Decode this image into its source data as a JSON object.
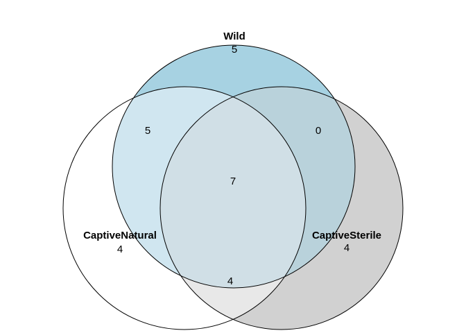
{
  "sets": [
    {
      "id": "wild",
      "name": "Wild",
      "count": "5",
      "color": "#a7d2e2"
    },
    {
      "id": "captive-natural",
      "name": "CaptiveNatural",
      "count": "4",
      "color": "#ffffff"
    },
    {
      "id": "captive-sterile",
      "name": "CaptiveSterile",
      "count": "4",
      "color": "#d1d1d1"
    }
  ],
  "overlaps": {
    "wild_captive_natural": "5",
    "wild_captive_sterile": "0",
    "captive_natural_captive_sterile": "4",
    "all_three": "7"
  },
  "colors": {
    "wild_captive_natural": "#d0e6f0",
    "wild_captive_sterile": "#b9d2db",
    "captive_natural_captive_sterile": "#e8e8e8",
    "all_three": "#d0dfe6",
    "outline": "#000000"
  }
}
